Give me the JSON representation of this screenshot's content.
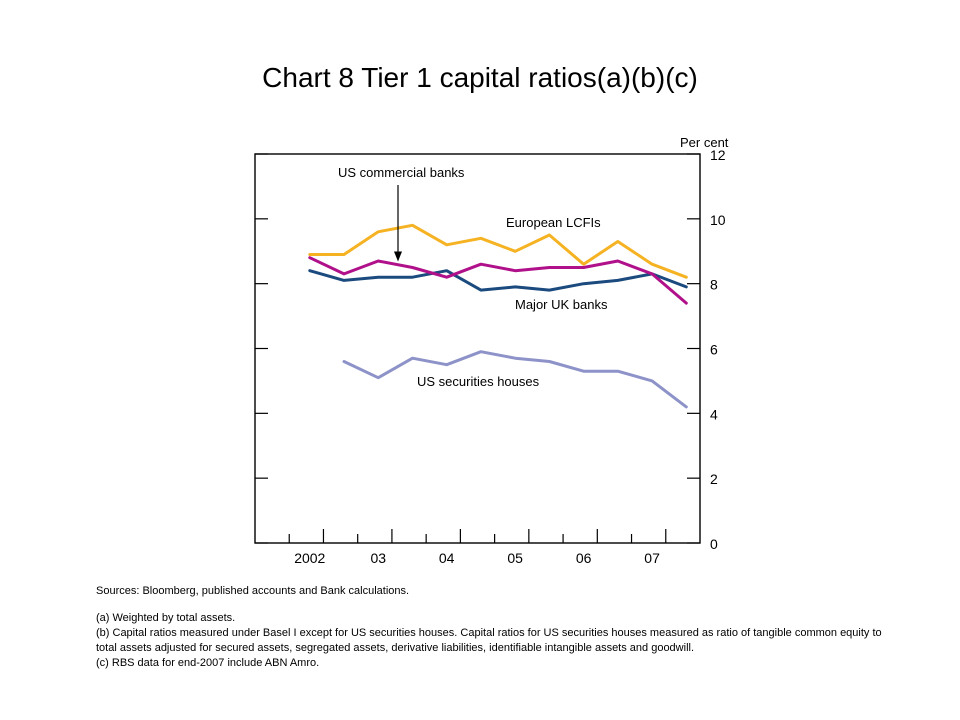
{
  "slide": {
    "title": "Chart 8  Tier 1 capital ratios(a)(b)(c)"
  },
  "chart_data": {
    "type": "line",
    "unit_label": "Per cent",
    "ylim": [
      0,
      12
    ],
    "y_ticks": [
      "0",
      "2",
      "4",
      "6",
      "8",
      "10",
      "12"
    ],
    "x_tick_labels": [
      "2002",
      "03",
      "04",
      "05",
      "06",
      "07"
    ],
    "x_periods": [
      "2002 H1",
      "2002 H2",
      "2003 H1",
      "2003 H2",
      "2004 H1",
      "2004 H2",
      "2005 H1",
      "2005 H2",
      "2006 H1",
      "2006 H2",
      "2007 H1",
      "2007 H2"
    ],
    "grid": false,
    "series": [
      {
        "name": "European LCFIs",
        "color": "#f5b323",
        "x_start": 0,
        "values": [
          8.9,
          8.9,
          9.6,
          9.8,
          9.2,
          9.4,
          9.0,
          9.5,
          8.6,
          9.3,
          8.6,
          8.2
        ]
      },
      {
        "name": "Major UK banks",
        "color": "#1b4a7e",
        "x_start": 0,
        "values": [
          8.4,
          8.1,
          8.2,
          8.2,
          8.4,
          7.8,
          7.9,
          7.8,
          8.0,
          8.1,
          8.3,
          7.9
        ]
      },
      {
        "name": "",
        "color": "#b0108a",
        "x_start": 0,
        "values": [
          8.8,
          8.3,
          8.7,
          8.5,
          8.2,
          8.6,
          8.4,
          8.5,
          8.5,
          8.7,
          8.3,
          7.4
        ]
      },
      {
        "name": "US securities houses",
        "color": "#8d93c8",
        "x_start": 1,
        "values": [
          5.6,
          5.1,
          5.7,
          5.5,
          5.9,
          5.7,
          5.6,
          5.3,
          5.3,
          5.0,
          4.2
        ]
      }
    ],
    "annotations": [
      {
        "text": "US commercial banks",
        "target_series": 2,
        "target_index": 3,
        "arrow": true
      },
      {
        "text": "European LCFIs",
        "target_series": 0
      },
      {
        "text": "Major UK banks",
        "target_series": 1
      },
      {
        "text": "US securities houses",
        "target_series": 3
      }
    ]
  },
  "notes": {
    "sources": "Sources:  Bloomberg, published accounts and Bank calculations.",
    "a": "(a)  Weighted by total assets.",
    "b": "(b)  Capital ratios measured under Basel I except for US securities houses.  Capital ratios for US securities houses measured as ratio of tangible common equity to total assets adjusted for secured assets, segregated assets, derivative liabilities, identifiable intangible assets and goodwill.",
    "c": "(c)  RBS data for end-2007 include ABN Amro."
  }
}
